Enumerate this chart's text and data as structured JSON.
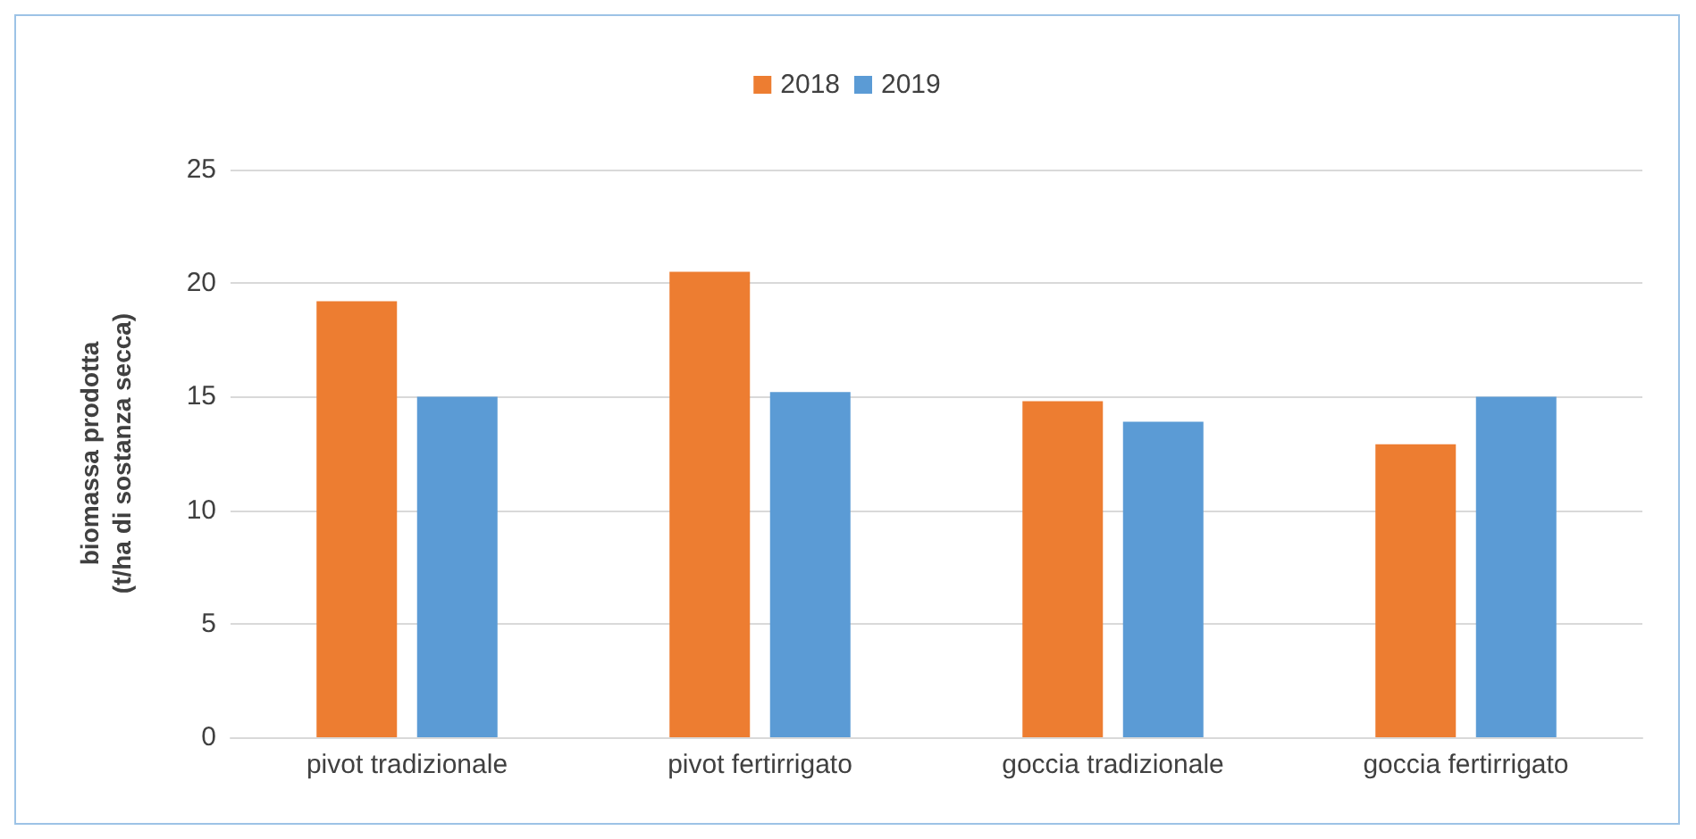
{
  "chart_data": {
    "type": "bar",
    "ylabel": "biomassa prodotta\n(t/ha di sostanza secca)",
    "categories": [
      "pivot tradizionale",
      "pivot fertirrigato",
      "goccia tradizionale",
      "goccia fertirrigato"
    ],
    "series": [
      {
        "name": "2018",
        "color": "#ed7d31",
        "values": [
          19.2,
          20.5,
          14.8,
          12.9
        ]
      },
      {
        "name": "2019",
        "color": "#5b9bd5",
        "values": [
          15.0,
          15.2,
          13.9,
          15.0
        ]
      }
    ],
    "ylim": [
      0,
      25
    ],
    "yticks": [
      0,
      5,
      10,
      15,
      20,
      25
    ],
    "grid": "y",
    "legend": "top"
  }
}
